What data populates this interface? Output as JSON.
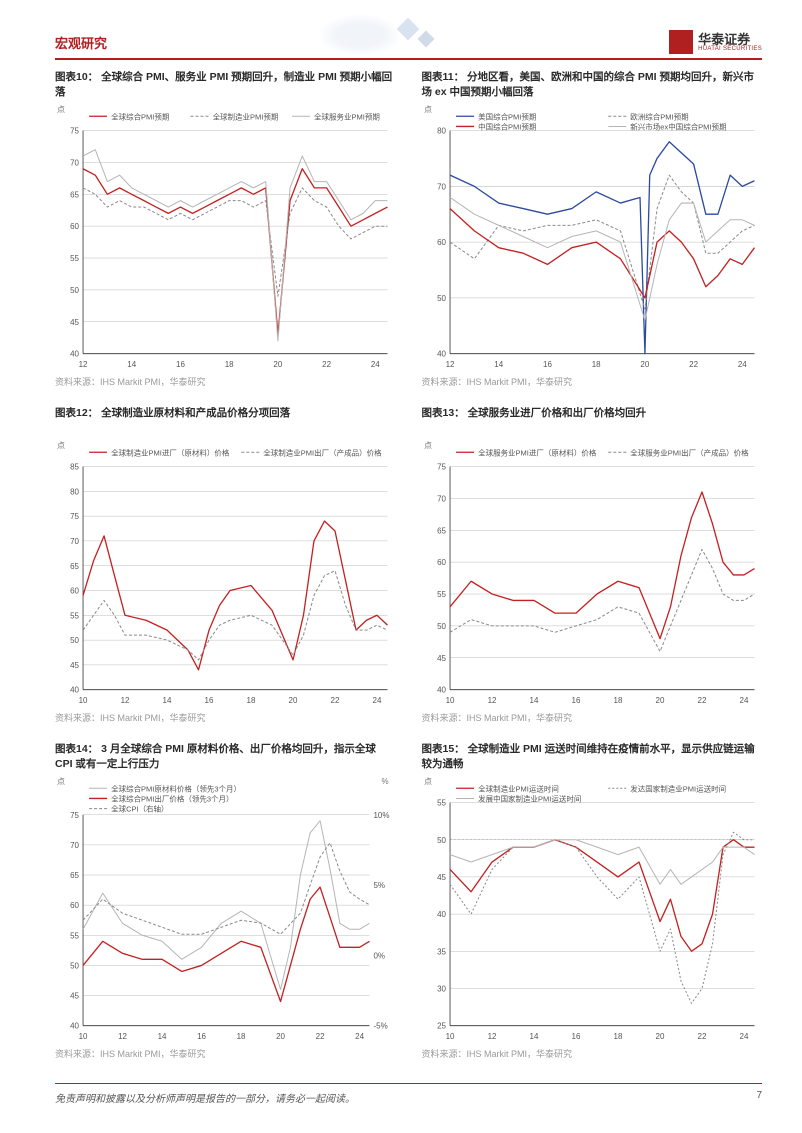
{
  "header": {
    "title": "宏观研究"
  },
  "logo": {
    "cn": "华泰证券",
    "en": "HUATAI SECURITIES"
  },
  "footer": {
    "disclaimer": "免责声明和披露以及分析师声明是报告的一部分，请务必一起阅读。",
    "page": "7"
  },
  "source_common": "资料来源：IHS Markit PMI，华泰研究",
  "colors": {
    "red": "#c42020",
    "blue": "#2b4aa0",
    "gray": "#8a8a8a",
    "lightgray": "#b5b5b5",
    "axis": "#444444",
    "title": "#2a2a2a"
  },
  "charts": [
    {
      "id": "c10",
      "title": "图表10： 全球综合 PMI、服务业 PMI 预期回升，制造业 PMI 预期小幅回落",
      "unit": "点",
      "xlim": [
        12,
        24.5
      ],
      "ylim": [
        40,
        75
      ],
      "ytick_step": 5,
      "xticks": [
        12,
        14,
        16,
        18,
        20,
        22,
        24
      ],
      "legend_cols": 3,
      "series": [
        {
          "label": "全球综合PMI预期",
          "color": "#c42020",
          "dash": "",
          "width": 1.3,
          "x": [
            12,
            12.5,
            13,
            13.5,
            14,
            14.5,
            15,
            15.5,
            16,
            16.5,
            17,
            17.5,
            18,
            18.5,
            19,
            19.5,
            20,
            20.5,
            21,
            21.5,
            22,
            22.5,
            23,
            23.5,
            24,
            24.5
          ],
          "y": [
            69,
            68,
            65,
            66,
            65,
            64,
            63,
            62,
            63,
            62,
            63,
            64,
            65,
            66,
            65,
            66,
            43,
            64,
            69,
            66,
            66,
            63,
            60,
            61,
            62,
            63
          ]
        },
        {
          "label": "全球制造业PMI预期",
          "color": "#8a8a8a",
          "dash": "3 2",
          "width": 1,
          "x": [
            12,
            12.5,
            13,
            13.5,
            14,
            14.5,
            15,
            15.5,
            16,
            16.5,
            17,
            17.5,
            18,
            18.5,
            19,
            19.5,
            20,
            20.5,
            21,
            21.5,
            22,
            22.5,
            23,
            23.5,
            24,
            24.5
          ],
          "y": [
            66,
            65,
            63,
            64,
            63,
            63,
            62,
            61,
            62,
            61,
            62,
            63,
            64,
            64,
            63,
            64,
            49,
            62,
            66,
            64,
            63,
            60,
            58,
            59,
            60,
            60
          ]
        },
        {
          "label": "全球服务业PMI预期",
          "color": "#b5b5b5",
          "dash": "",
          "width": 1,
          "x": [
            12,
            12.5,
            13,
            13.5,
            14,
            14.5,
            15,
            15.5,
            16,
            16.5,
            17,
            17.5,
            18,
            18.5,
            19,
            19.5,
            20,
            20.5,
            21,
            21.5,
            22,
            22.5,
            23,
            23.5,
            24,
            24.5
          ],
          "y": [
            71,
            72,
            67,
            68,
            66,
            65,
            64,
            63,
            64,
            63,
            64,
            65,
            66,
            67,
            66,
            67,
            42,
            66,
            71,
            67,
            67,
            64,
            61,
            62,
            64,
            64
          ]
        }
      ]
    },
    {
      "id": "c11",
      "title": "图表11： 分地区看，美国、欧洲和中国的综合 PMI 预期均回升，新兴市场 ex 中国预期小幅回落",
      "unit": "点",
      "xlim": [
        12,
        24.5
      ],
      "ylim": [
        40,
        80
      ],
      "ytick_step": 10,
      "xticks": [
        12,
        14,
        16,
        18,
        20,
        22,
        24
      ],
      "legend_cols": 2,
      "series": [
        {
          "label": "美国综合PMI预期",
          "color": "#2b4aa0",
          "dash": "",
          "width": 1.3,
          "x": [
            12,
            13,
            14,
            15,
            16,
            17,
            18,
            19,
            19.8,
            20,
            20.2,
            20.5,
            21,
            21.5,
            22,
            22.5,
            23,
            23.5,
            24,
            24.5
          ],
          "y": [
            72,
            70,
            67,
            66,
            65,
            66,
            69,
            67,
            68,
            40,
            72,
            75,
            78,
            76,
            74,
            65,
            65,
            72,
            70,
            71
          ]
        },
        {
          "label": "欧洲综合PMI预期",
          "color": "#8a8a8a",
          "dash": "3 2",
          "width": 1,
          "x": [
            12,
            13,
            14,
            15,
            16,
            17,
            18,
            19,
            20,
            20.5,
            21,
            21.5,
            22,
            22.5,
            23,
            23.5,
            24,
            24.5
          ],
          "y": [
            60,
            57,
            63,
            62,
            63,
            63,
            64,
            62,
            48,
            66,
            72,
            69,
            67,
            58,
            58,
            60,
            62,
            63
          ]
        },
        {
          "label": "中国综合PMI预期",
          "color": "#c42020",
          "dash": "",
          "width": 1.3,
          "x": [
            12,
            13,
            14,
            15,
            16,
            17,
            18,
            19,
            20,
            20.5,
            21,
            21.5,
            22,
            22.5,
            23,
            23.5,
            24,
            24.5
          ],
          "y": [
            66,
            62,
            59,
            58,
            56,
            59,
            60,
            57,
            50,
            60,
            62,
            60,
            57,
            52,
            54,
            57,
            56,
            59
          ]
        },
        {
          "label": "新兴市场ex中国综合PMI预期",
          "color": "#b5b5b5",
          "dash": "",
          "width": 1,
          "x": [
            12,
            13,
            14,
            15,
            16,
            17,
            18,
            19,
            20,
            20.5,
            21,
            21.5,
            22,
            22.5,
            23,
            23.5,
            24,
            24.5
          ],
          "y": [
            68,
            65,
            63,
            61,
            59,
            61,
            62,
            60,
            46,
            56,
            64,
            67,
            67,
            60,
            62,
            64,
            64,
            63
          ]
        }
      ]
    },
    {
      "id": "c12",
      "title": "图表12： 全球制造业原材料和产成品价格分项回落",
      "unit": "点",
      "xlim": [
        10,
        24.5
      ],
      "ylim": [
        40,
        85
      ],
      "ytick_step": 5,
      "xticks": [
        10,
        12,
        14,
        16,
        18,
        20,
        22,
        24
      ],
      "legend_cols": 2,
      "series": [
        {
          "label": "全球制造业PMI进厂（原材料）价格",
          "color": "#c42020",
          "dash": "",
          "width": 1.3,
          "x": [
            10,
            10.5,
            11,
            11.5,
            12,
            13,
            14,
            15,
            15.5,
            16,
            16.5,
            17,
            18,
            19,
            20,
            20.5,
            21,
            21.5,
            22,
            22.5,
            23,
            23.5,
            24,
            24.5
          ],
          "y": [
            59,
            66,
            71,
            63,
            55,
            54,
            52,
            48,
            44,
            52,
            57,
            60,
            61,
            56,
            46,
            55,
            70,
            74,
            72,
            62,
            52,
            54,
            55,
            53
          ]
        },
        {
          "label": "全球制造业PMI出厂（产成品）价格",
          "color": "#8a8a8a",
          "dash": "3 2",
          "width": 1,
          "x": [
            10,
            10.5,
            11,
            11.5,
            12,
            13,
            14,
            15,
            15.5,
            16,
            16.5,
            17,
            18,
            19,
            20,
            20.5,
            21,
            21.5,
            22,
            22.5,
            23,
            23.5,
            24,
            24.5
          ],
          "y": [
            52,
            55,
            58,
            55,
            51,
            51,
            50,
            48,
            46,
            50,
            53,
            54,
            55,
            53,
            47,
            51,
            59,
            63,
            64,
            57,
            52,
            52,
            53,
            52
          ]
        }
      ]
    },
    {
      "id": "c13",
      "title": "图表13： 全球服务业进厂价格和出厂价格均回升",
      "unit": "点",
      "xlim": [
        10,
        24.5
      ],
      "ylim": [
        40,
        75
      ],
      "ytick_step": 5,
      "xticks": [
        10,
        12,
        14,
        16,
        18,
        20,
        22,
        24
      ],
      "legend_cols": 2,
      "series": [
        {
          "label": "全球服务业PMI进厂（原材料）价格",
          "color": "#c42020",
          "dash": "",
          "width": 1.3,
          "x": [
            10,
            11,
            12,
            13,
            14,
            15,
            16,
            17,
            18,
            19,
            20,
            20.5,
            21,
            21.5,
            22,
            22.5,
            23,
            23.5,
            24,
            24.5
          ],
          "y": [
            53,
            57,
            55,
            54,
            54,
            52,
            52,
            55,
            57,
            56,
            48,
            53,
            61,
            67,
            71,
            66,
            60,
            58,
            58,
            59
          ]
        },
        {
          "label": "全球服务业PMI出厂（产成品）价格",
          "color": "#8a8a8a",
          "dash": "3 2",
          "width": 1,
          "x": [
            10,
            11,
            12,
            13,
            14,
            15,
            16,
            17,
            18,
            19,
            20,
            20.5,
            21,
            21.5,
            22,
            22.5,
            23,
            23.5,
            24,
            24.5
          ],
          "y": [
            49,
            51,
            50,
            50,
            50,
            49,
            50,
            51,
            53,
            52,
            46,
            50,
            54,
            58,
            62,
            59,
            55,
            54,
            54,
            55
          ]
        }
      ]
    },
    {
      "id": "c14",
      "title": "图表14： 3 月全球综合 PMI 原材料价格、出厂价格均回升，指示全球 CPI 或有一定上行压力",
      "unit": "点",
      "unit_right": "%",
      "xlim": [
        10,
        24.5
      ],
      "ylim": [
        40,
        75
      ],
      "ytick_step": 5,
      "ylim_right": [
        -5,
        10
      ],
      "ytick_step_right": 5,
      "xticks": [
        10,
        12,
        14,
        16,
        18,
        20,
        22,
        24
      ],
      "legend_cols": 1,
      "legend_compact": true,
      "series": [
        {
          "label": "全球综合PMI原材料价格（领先3个月）",
          "color": "#b5b5b5",
          "dash": "",
          "width": 1,
          "x": [
            10,
            11,
            12,
            13,
            14,
            15,
            16,
            17,
            18,
            19,
            20,
            20.5,
            21,
            21.5,
            22,
            22.5,
            23,
            23.5,
            24,
            24.5
          ],
          "y": [
            56,
            62,
            57,
            55,
            54,
            51,
            53,
            57,
            59,
            57,
            46,
            53,
            65,
            72,
            74,
            66,
            57,
            56,
            56,
            57
          ]
        },
        {
          "label": "全球综合PMI出厂价格（领先3个月）",
          "color": "#c42020",
          "dash": "",
          "width": 1.3,
          "x": [
            10,
            11,
            12,
            13,
            14,
            15,
            16,
            17,
            18,
            19,
            20,
            20.5,
            21,
            21.5,
            22,
            22.5,
            23,
            23.5,
            24,
            24.5
          ],
          "y": [
            50,
            54,
            52,
            51,
            51,
            49,
            50,
            52,
            54,
            53,
            44,
            50,
            56,
            61,
            63,
            58,
            53,
            53,
            53,
            54
          ]
        },
        {
          "label": "全球CPI（右轴）",
          "color": "#8a8a8a",
          "dash": "3 2",
          "width": 1,
          "right": true,
          "x": [
            10,
            11,
            12,
            13,
            14,
            15,
            16,
            17,
            18,
            19,
            20,
            21,
            21.5,
            22,
            22.5,
            23,
            23.5,
            24,
            24.5
          ],
          "y": [
            2.5,
            4,
            3,
            2.5,
            2,
            1.5,
            1.5,
            2,
            2.5,
            2.3,
            1.5,
            3,
            5,
            7,
            8,
            6,
            4.5,
            4,
            3.6
          ]
        }
      ]
    },
    {
      "id": "c15",
      "title": "图表15： 全球制造业 PMI 运送时间维持在疫情前水平，显示供应链运输较为通畅",
      "unit": "点",
      "xlim": [
        10,
        24.5
      ],
      "ylim": [
        25,
        55
      ],
      "ytick_step": 5,
      "xticks": [
        10,
        12,
        14,
        16,
        18,
        20,
        22,
        24
      ],
      "ref_line": 50,
      "legend_cols": 2,
      "series": [
        {
          "label": "全球制造业PMI运送时间",
          "color": "#c42020",
          "dash": "",
          "width": 1.3,
          "x": [
            10,
            11,
            12,
            13,
            14,
            15,
            16,
            17,
            18,
            19,
            20,
            20.5,
            21,
            21.5,
            22,
            22.5,
            23,
            23.5,
            24,
            24.5
          ],
          "y": [
            46,
            43,
            47,
            49,
            49,
            50,
            49,
            47,
            45,
            47,
            39,
            42,
            37,
            35,
            36,
            40,
            49,
            50,
            49,
            49
          ]
        },
        {
          "label": "发达国家制造业PMI运送时间",
          "color": "#8a8a8a",
          "dash": "2 2",
          "width": 1,
          "x": [
            10,
            11,
            12,
            13,
            14,
            15,
            16,
            17,
            18,
            19,
            20,
            20.5,
            21,
            21.5,
            22,
            22.5,
            23,
            23.5,
            24,
            24.5
          ],
          "y": [
            44,
            40,
            46,
            49,
            49,
            50,
            49,
            45,
            42,
            45,
            35,
            38,
            31,
            28,
            30,
            36,
            48,
            51,
            50,
            50
          ]
        },
        {
          "label": "发展中国家制造业PMI运送时间",
          "color": "#b5b5b5",
          "dash": "",
          "width": 1,
          "x": [
            10,
            11,
            12,
            13,
            14,
            15,
            16,
            17,
            18,
            19,
            20,
            20.5,
            21,
            21.5,
            22,
            22.5,
            23,
            23.5,
            24,
            24.5
          ],
          "y": [
            48,
            47,
            48,
            49,
            49,
            50,
            50,
            49,
            48,
            49,
            44,
            46,
            44,
            45,
            46,
            47,
            49,
            49,
            49,
            48
          ]
        }
      ]
    }
  ]
}
